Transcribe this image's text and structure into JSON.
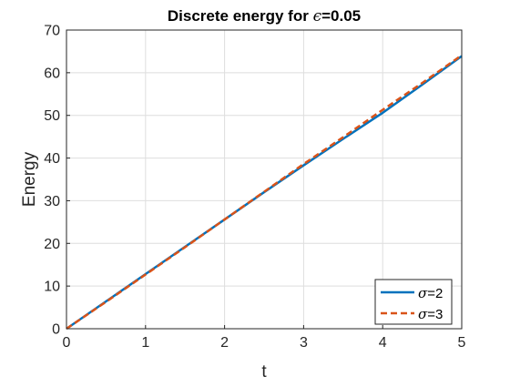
{
  "chart_data": {
    "type": "line",
    "title_prefix": "Discrete energy for ",
    "title_symbol": "ϵ",
    "title_suffix": "=0.05",
    "xlabel": "t",
    "ylabel": "Energy",
    "xlim": [
      0,
      5
    ],
    "ylim": [
      0,
      70
    ],
    "x_ticks": [
      "0",
      "1",
      "2",
      "3",
      "4",
      "5"
    ],
    "y_ticks": [
      "0",
      "10",
      "20",
      "30",
      "40",
      "50",
      "60",
      "70"
    ],
    "grid": true,
    "legend_position": "bottom-right",
    "series": [
      {
        "name_symbol": "σ",
        "name_suffix": "=2",
        "color": "#0072BD",
        "style": "solid",
        "x": [
          0,
          0.5,
          1,
          1.5,
          2,
          2.5,
          3,
          3.5,
          4,
          4.5,
          5
        ],
        "values": [
          0,
          6.4,
          12.8,
          19.2,
          25.6,
          32.0,
          38.3,
          44.5,
          50.6,
          57.2,
          63.9
        ]
      },
      {
        "name_symbol": "σ",
        "name_suffix": "=3",
        "color": "#D95319",
        "style": "dashed",
        "x": [
          0,
          0.5,
          1,
          1.5,
          2,
          2.5,
          3,
          3.5,
          4,
          4.5,
          5
        ],
        "values": [
          0,
          6.3,
          12.7,
          19.1,
          25.6,
          32.1,
          38.6,
          44.9,
          51.3,
          57.6,
          64.1
        ]
      }
    ]
  }
}
